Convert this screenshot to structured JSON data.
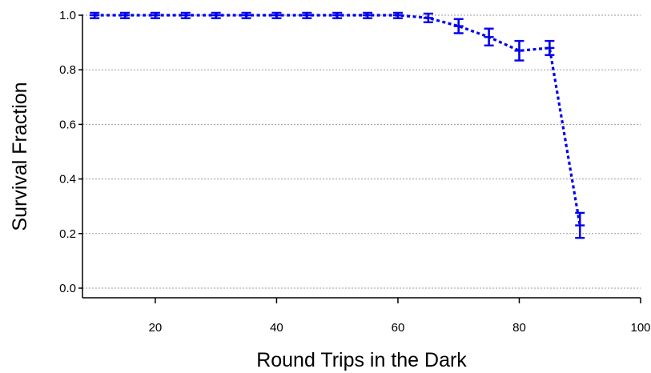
{
  "chart_data": {
    "type": "line",
    "xlabel": "Round Trips in the Dark",
    "ylabel": "Survival Fraction",
    "xlim": [
      8,
      100
    ],
    "ylim": [
      -0.03,
      1.0
    ],
    "xticks": [
      20,
      40,
      60,
      80,
      100
    ],
    "xtick_labels": [
      "20",
      "40",
      "60",
      "80",
      "100"
    ],
    "yticks": [
      0.0,
      0.2,
      0.4,
      0.6,
      0.8,
      1.0
    ],
    "ytick_labels": [
      "0.0",
      "0.2",
      "0.4",
      "0.6",
      "0.8",
      "1.0"
    ],
    "grid": "horizontal",
    "series_color": "#0000ee",
    "series": [
      {
        "x": [
          10,
          15,
          20,
          25,
          30,
          35,
          40,
          45,
          50,
          55,
          60,
          65,
          70,
          75,
          80,
          85,
          90
        ],
        "y": [
          1.0,
          1.0,
          1.0,
          1.0,
          1.0,
          1.0,
          1.0,
          1.0,
          1.0,
          1.0,
          1.0,
          0.99,
          0.96,
          0.92,
          0.87,
          0.88,
          0.23
        ],
        "err": [
          0.005,
          0.005,
          0.005,
          0.005,
          0.005,
          0.005,
          0.005,
          0.005,
          0.005,
          0.005,
          0.005,
          0.01,
          0.02,
          0.025,
          0.03,
          0.02,
          0.04
        ]
      }
    ]
  }
}
